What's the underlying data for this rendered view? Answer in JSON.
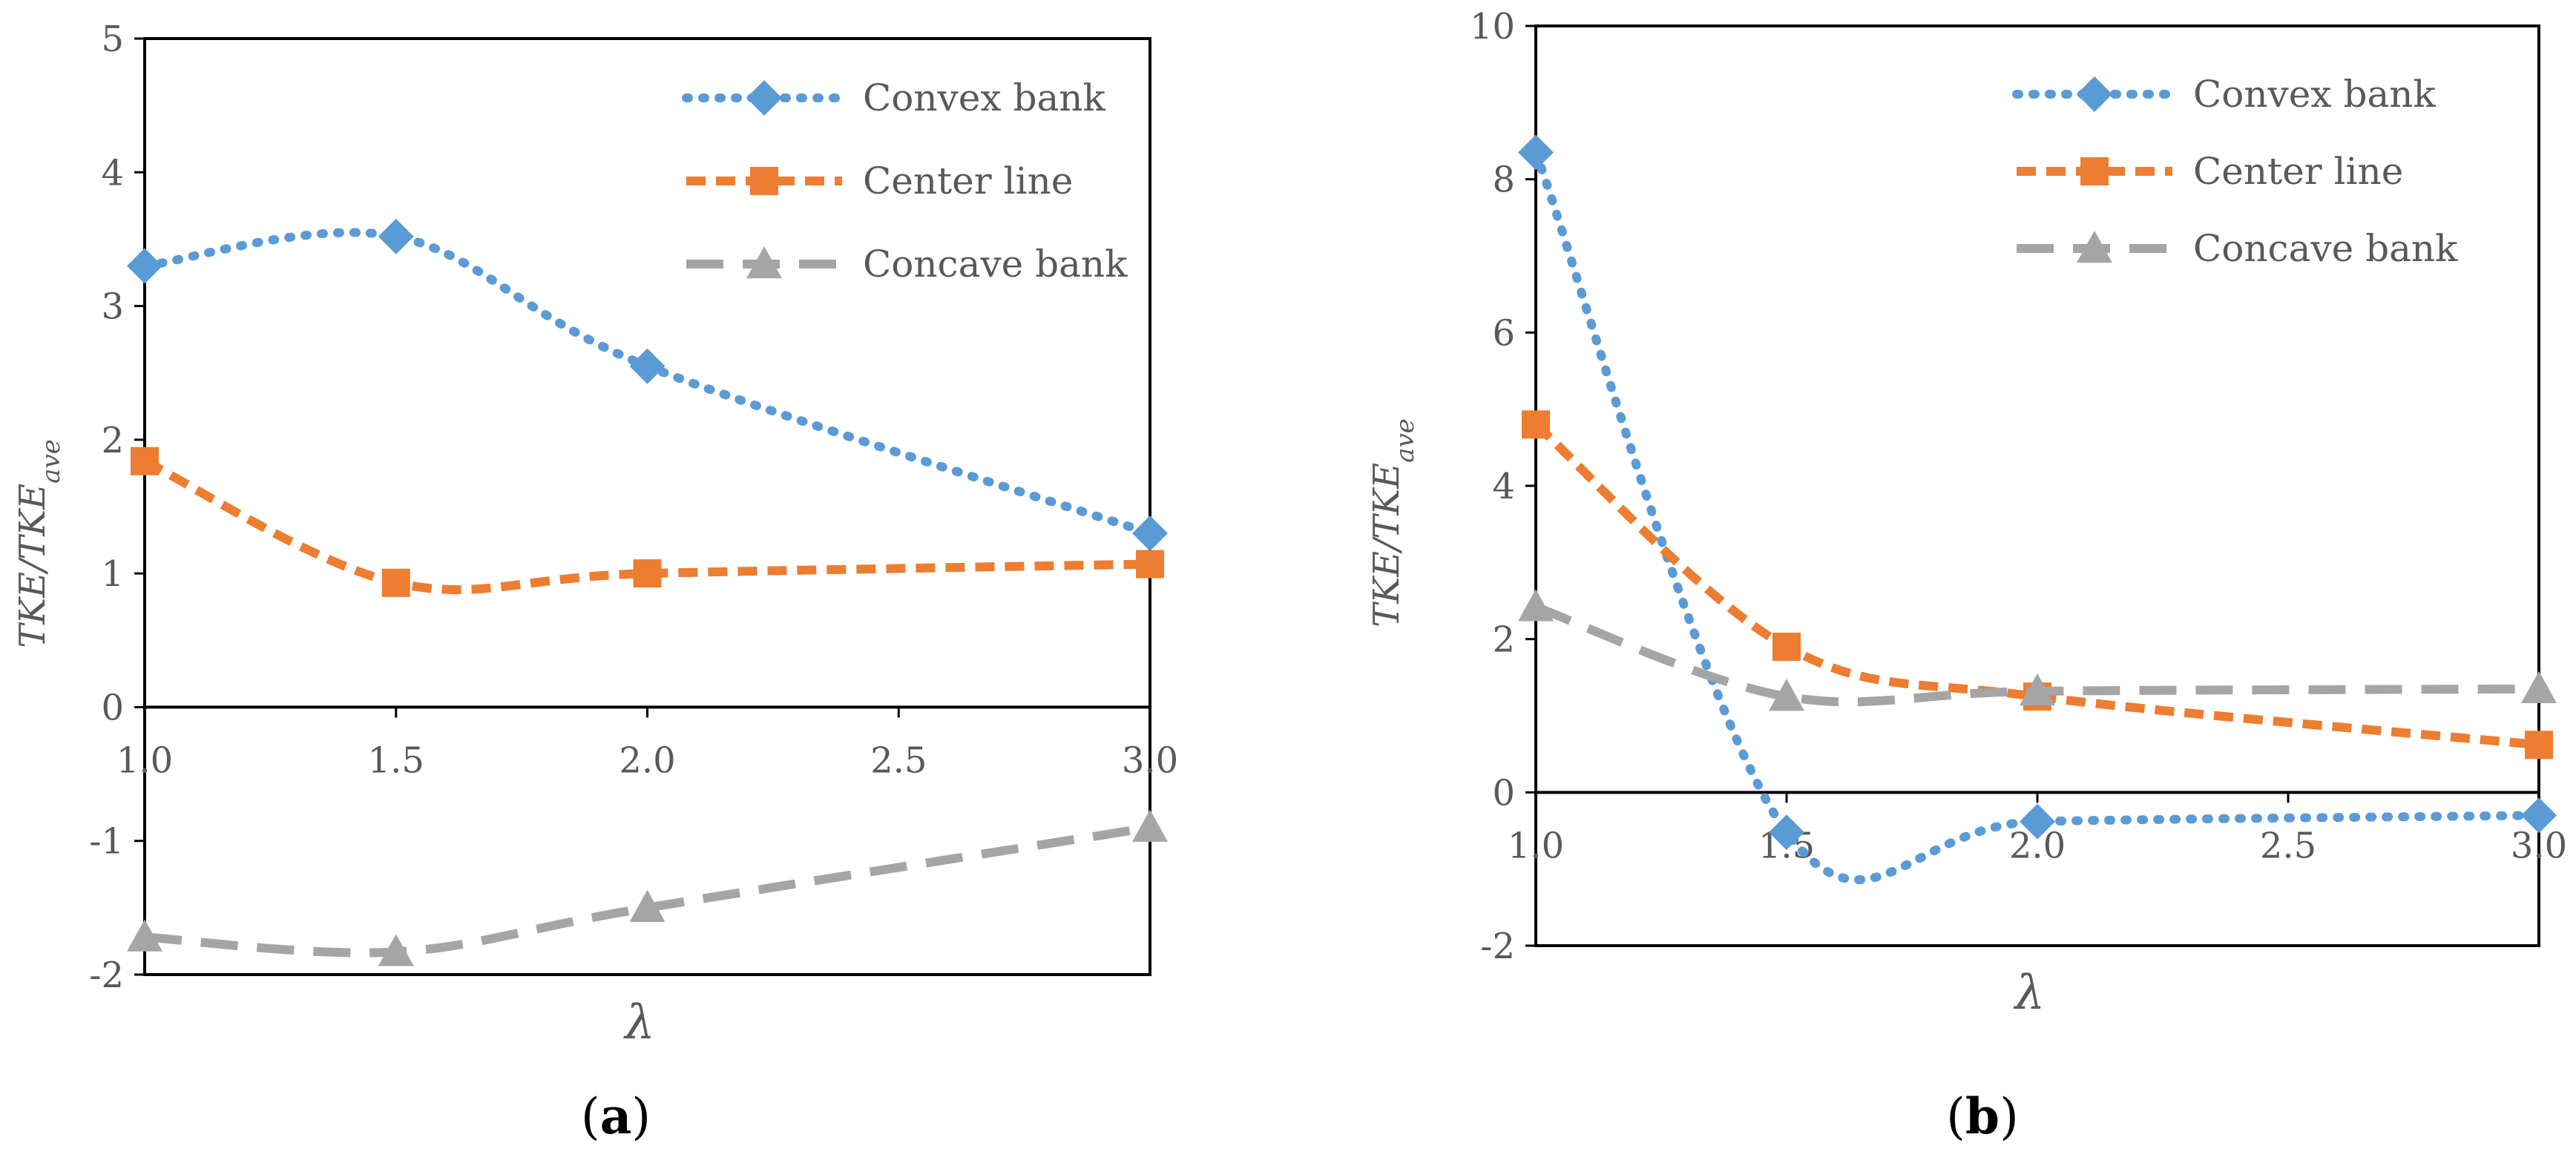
{
  "colors": {
    "convex": "#5B9BD5",
    "center": "#ED7D31",
    "concave": "#A5A5A5",
    "axis": "#000000",
    "text": "#595959"
  },
  "chart_data": [
    {
      "panel_label": "a",
      "type": "line",
      "x": [
        1.0,
        1.5,
        2.0,
        3.0
      ],
      "xticks": [
        "1.0",
        "1.5",
        "2.0",
        "2.5",
        "3.0"
      ],
      "xtick_values": [
        1.0,
        1.5,
        2.0,
        2.5,
        3.0
      ],
      "xlim": [
        1.0,
        3.0
      ],
      "ylim": [
        -2,
        5
      ],
      "yticks": [
        "-2",
        "-1",
        "0",
        "1",
        "2",
        "3",
        "4",
        "5"
      ],
      "ytick_values": [
        -2,
        -1,
        0,
        1,
        2,
        3,
        4,
        5
      ],
      "ylabel_main": "TKE/TKE",
      "ylabel_sub": "ave",
      "xlabel": "λ",
      "legend_position": "top-right",
      "series": [
        {
          "name": "Convex bank",
          "style": "dotted",
          "marker": "diamond",
          "values": [
            3.3,
            3.52,
            2.55,
            1.3
          ]
        },
        {
          "name": "Center line",
          "style": "dashed",
          "marker": "square",
          "values": [
            1.84,
            0.93,
            1.0,
            1.07
          ]
        },
        {
          "name": "Concave bank",
          "style": "longdash",
          "marker": "triangle",
          "values": [
            -1.72,
            -1.83,
            -1.5,
            -0.9
          ]
        }
      ]
    },
    {
      "panel_label": "b",
      "type": "line",
      "x": [
        1.0,
        1.5,
        2.0,
        3.0
      ],
      "xticks": [
        "1.0",
        "1.5",
        "2.0",
        "2.5",
        "3.0"
      ],
      "xtick_values": [
        1.0,
        1.5,
        2.0,
        2.5,
        3.0
      ],
      "xlim": [
        1.0,
        3.0
      ],
      "ylim": [
        -2,
        10
      ],
      "yticks": [
        "-2",
        "0",
        "2",
        "4",
        "6",
        "8",
        "10"
      ],
      "ytick_values": [
        -2,
        0,
        2,
        4,
        6,
        8,
        10
      ],
      "ylabel_main": "TKE/TKE",
      "ylabel_sub": "ave",
      "xlabel": "λ",
      "legend_position": "top-right",
      "series": [
        {
          "name": "Convex bank",
          "style": "dotted",
          "marker": "diamond",
          "values": [
            8.35,
            -0.52,
            -0.38,
            -0.3
          ]
        },
        {
          "name": "Center line",
          "style": "dashed",
          "marker": "square",
          "values": [
            4.8,
            1.9,
            1.25,
            0.62
          ]
        },
        {
          "name": "Concave bank",
          "style": "longdash",
          "marker": "triangle",
          "values": [
            2.42,
            1.25,
            1.32,
            1.35
          ]
        }
      ]
    }
  ]
}
